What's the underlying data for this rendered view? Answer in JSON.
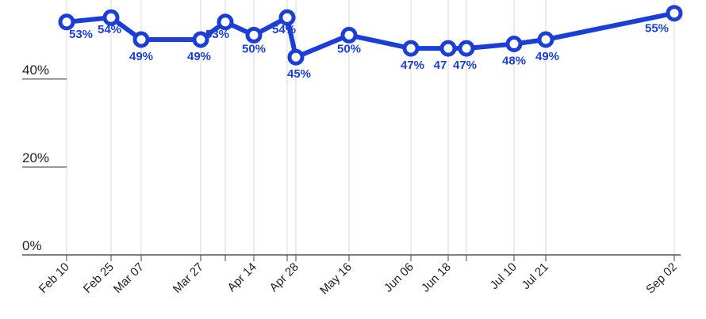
{
  "chart_data": {
    "type": "line",
    "x": [
      "Feb 10",
      "Feb 25",
      "Mar 07",
      "Mar 27",
      "Apr 04",
      "Apr 14",
      "Apr 24",
      "Apr 28",
      "May 16",
      "Jun 06",
      "Jun 18",
      "Jun 24",
      "Jul 10",
      "Jul 21",
      "Sep 02"
    ],
    "x_tick_labels": [
      "Feb 10",
      "Feb 25",
      "Mar 07",
      "Mar 27",
      "Apr 14",
      "Apr 28",
      "May 16",
      "Jun 06",
      "Jun 18",
      "Jul 10",
      "Jul 21",
      "Sep 02"
    ],
    "series": [
      {
        "values": [
          53,
          54,
          49,
          49,
          53,
          50,
          54,
          45,
          50,
          47,
          47,
          47,
          48,
          49,
          55
        ],
        "labels": [
          "53%",
          "54%",
          "49%",
          "49%",
          "53%",
          "50%",
          "54%",
          "45%",
          "50%",
          "47%",
          "47",
          "47%",
          "48%",
          "49%",
          "55%"
        ]
      }
    ],
    "y_tick_labels": [
      "0%",
      "20%",
      "40%"
    ],
    "y_ticks": [
      0,
      20,
      40
    ],
    "ylim": [
      0,
      58
    ],
    "grid": "vertical",
    "line_color": "#1b3fd6",
    "text_color": "#222222",
    "grid_color": "#d9d9d9"
  }
}
